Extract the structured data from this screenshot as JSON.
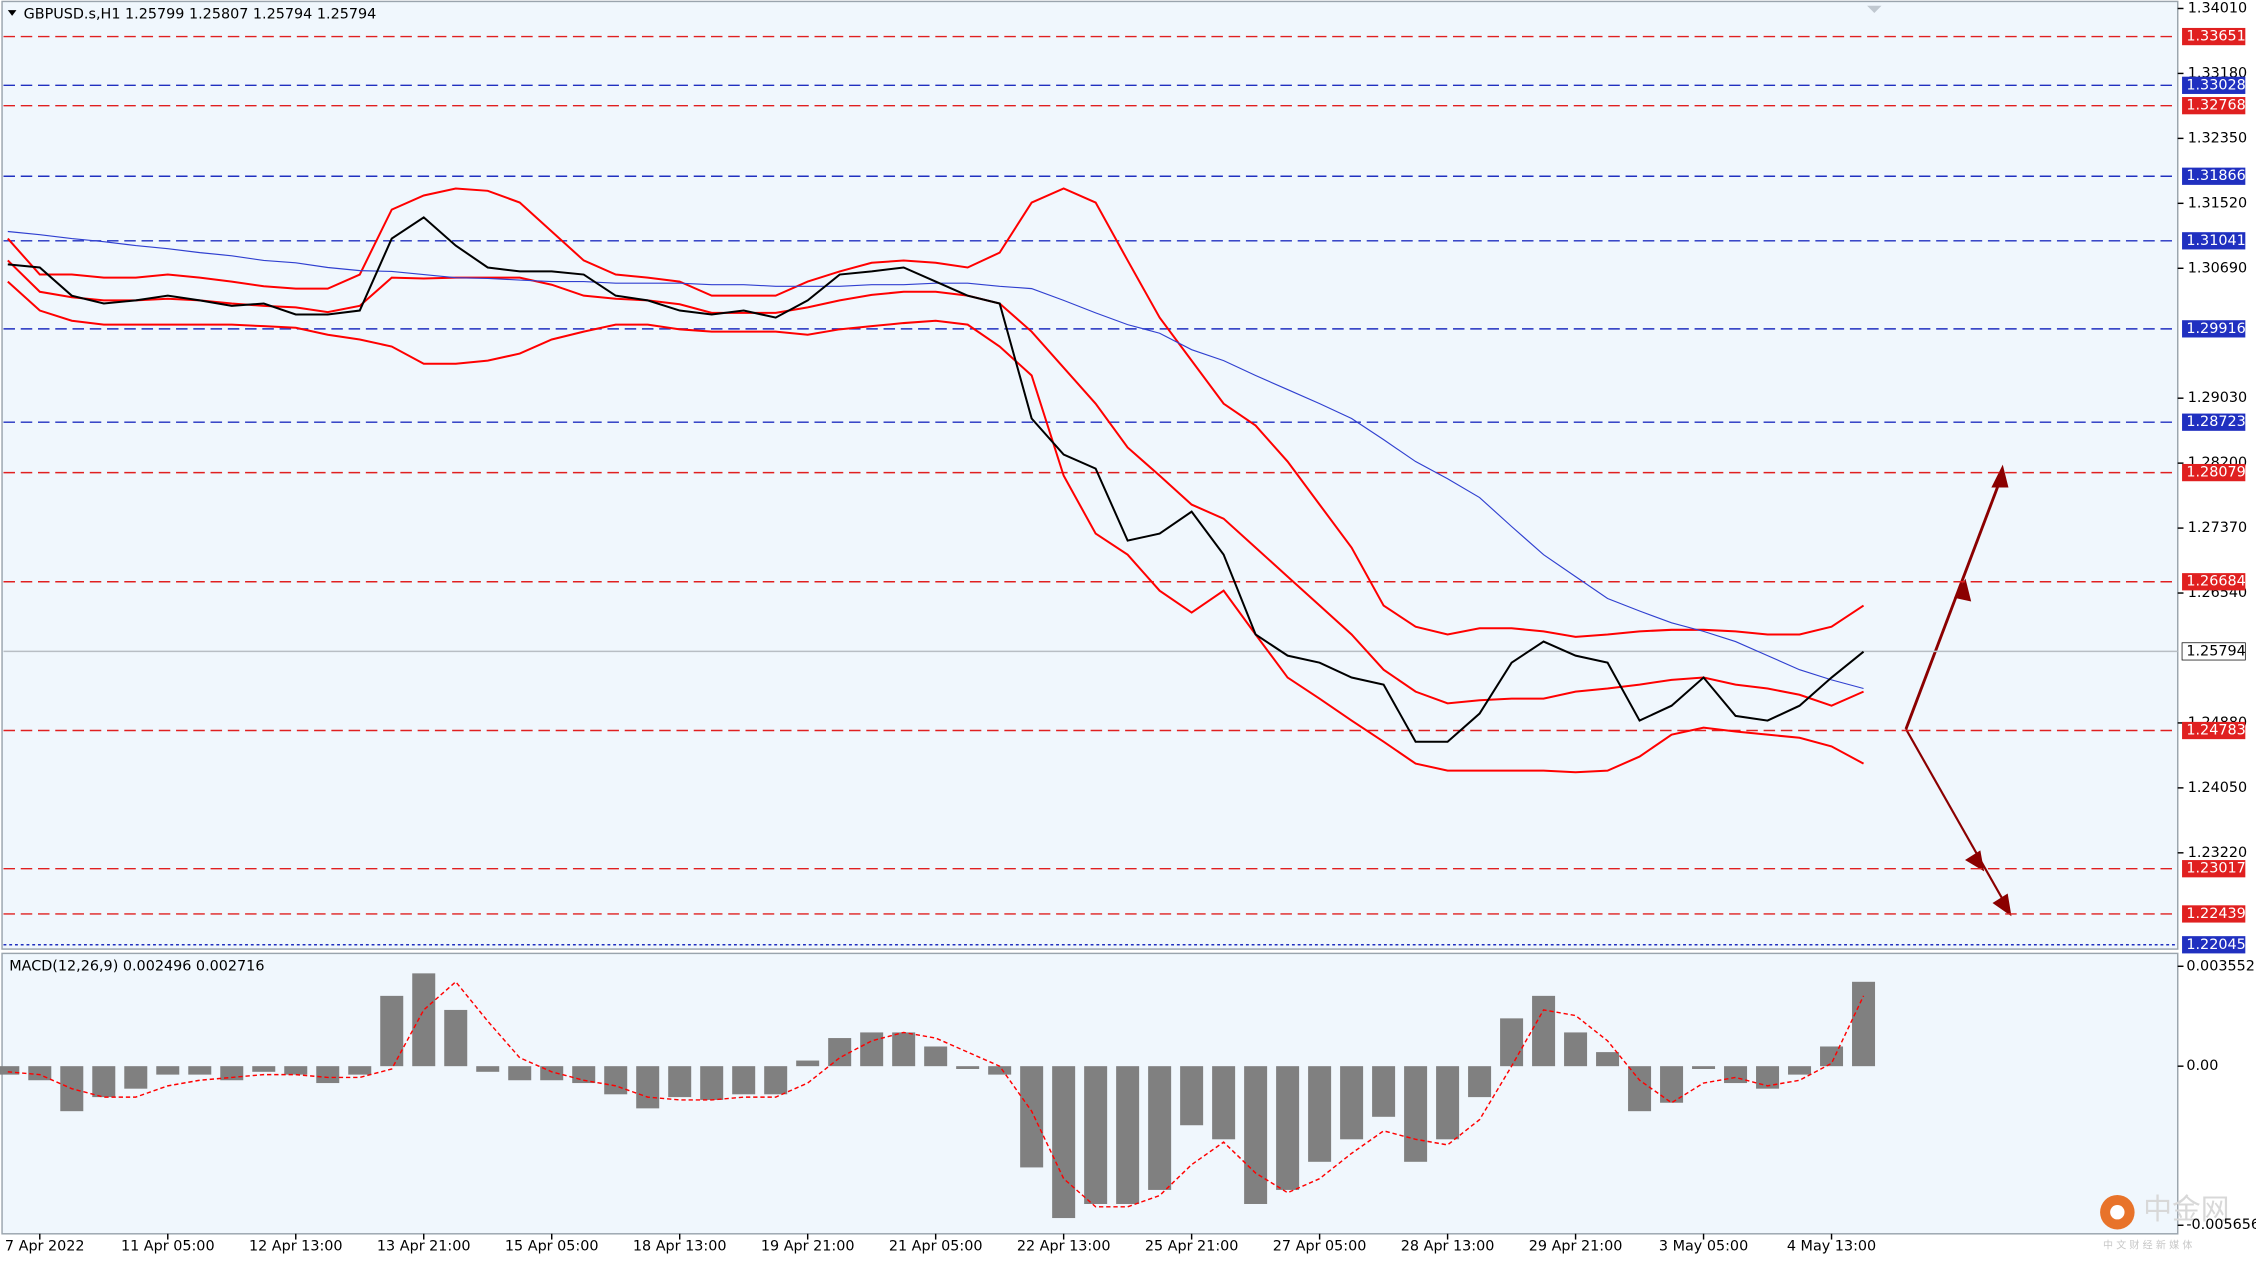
{
  "chart_data": [
    {
      "type": "line",
      "title": "GBPUSD.s,H1  1.25799 1.25807 1.25794 1.25794",
      "categories": [
        null,
        "7 Apr 2022",
        null,
        null,
        null,
        "11 Apr 05:00",
        null,
        null,
        null,
        "12 Apr 13:00",
        null,
        null,
        null,
        "13 Apr 21:00",
        null,
        null,
        null,
        "15 Apr 05:00",
        null,
        null,
        null,
        "18 Apr 13:00",
        null,
        null,
        null,
        "19 Apr 21:00",
        null,
        null,
        null,
        "21 Apr 05:00",
        null,
        null,
        null,
        "22 Apr 13:00",
        null,
        null,
        null,
        "25 Apr 21:00",
        null,
        null,
        null,
        "27 Apr 05:00",
        null,
        null,
        null,
        "28 Apr 13:00",
        null,
        null,
        null,
        "29 Apr 21:00",
        null,
        null,
        null,
        "3 May 05:00",
        null,
        null,
        null,
        "4 May 13:00",
        null
      ],
      "series": [
        {
          "color": "#ff0000",
          "values": [
            1.3107,
            1.3061,
            1.3061,
            1.3057,
            1.3057,
            1.3061,
            1.3057,
            1.3052,
            1.3046,
            1.3043,
            1.3043,
            1.3061,
            1.3144,
            1.3162,
            1.3171,
            1.3168,
            1.3153,
            1.3116,
            1.3079,
            1.3061,
            1.3057,
            1.3052,
            1.3034,
            1.3034,
            1.3034,
            1.3052,
            1.3065,
            1.3076,
            1.3079,
            1.3076,
            1.307,
            1.3089,
            1.3153,
            1.3171,
            1.3153,
            1.3079,
            1.3006,
            1.2951,
            1.2896,
            1.2868,
            1.2822,
            1.2767,
            1.2712,
            1.2638,
            1.2611,
            1.2601,
            1.2609,
            1.2609,
            1.2605,
            1.2598,
            1.2601,
            1.2605,
            1.2607,
            1.2607,
            1.2605,
            1.2601,
            1.2601,
            1.2611,
            1.2638
          ]
        },
        {
          "color": "#ff0000",
          "values": [
            1.3079,
            1.3039,
            1.3032,
            1.3028,
            1.3028,
            1.303,
            1.3028,
            1.3024,
            1.3021,
            1.3019,
            1.3013,
            1.3021,
            1.3057,
            1.3056,
            1.3057,
            1.3057,
            1.3057,
            1.3048,
            1.3034,
            1.303,
            1.3028,
            1.3023,
            1.3012,
            1.3012,
            1.3012,
            1.3019,
            1.3028,
            1.3035,
            1.3039,
            1.3039,
            1.3034,
            1.3024,
            1.2988,
            1.2942,
            1.2896,
            1.284,
            1.2804,
            1.2767,
            1.2749,
            1.2712,
            1.2675,
            1.2638,
            1.2601,
            1.2556,
            1.2528,
            1.2513,
            1.2517,
            1.2519,
            1.2519,
            1.2528,
            1.2532,
            1.2537,
            1.2543,
            1.2546,
            1.2537,
            1.2532,
            1.2524,
            1.251,
            1.2528
          ]
        },
        {
          "color": "#ff0000",
          "values": [
            1.3052,
            1.3015,
            1.3002,
            1.2997,
            1.2997,
            1.2997,
            1.2997,
            1.2997,
            1.2995,
            1.2993,
            1.2984,
            1.2978,
            1.2969,
            1.2947,
            1.2947,
            1.2951,
            1.296,
            1.2978,
            1.2988,
            1.2997,
            1.2997,
            1.2991,
            1.2988,
            1.2988,
            1.2988,
            1.2984,
            1.2991,
            1.2995,
            1.2999,
            1.3002,
            1.2997,
            1.2969,
            1.2932,
            1.2804,
            1.273,
            1.2703,
            1.2657,
            1.2629,
            1.2657,
            1.2601,
            1.2546,
            1.2519,
            1.2491,
            1.2464,
            1.2436,
            1.2427,
            1.2427,
            1.2427,
            1.2427,
            1.2425,
            1.2427,
            1.2445,
            1.2473,
            1.2482,
            1.2477,
            1.2473,
            1.2469,
            1.2458,
            1.2436
          ]
        },
        {
          "color": "#3040d0",
          "values": [
            1.3116,
            1.3112,
            1.3107,
            1.3103,
            1.3098,
            1.3094,
            1.3089,
            1.3085,
            1.3079,
            1.3076,
            1.307,
            1.3066,
            1.3065,
            1.3061,
            1.3057,
            1.3056,
            1.3054,
            1.3052,
            1.3052,
            1.305,
            1.305,
            1.305,
            1.3048,
            1.3048,
            1.3046,
            1.3046,
            1.3046,
            1.3048,
            1.3048,
            1.305,
            1.305,
            1.3046,
            1.3043,
            1.3028,
            1.3012,
            1.2997,
            1.2986,
            1.2965,
            1.2951,
            1.2932,
            1.2914,
            1.2896,
            1.2877,
            1.285,
            1.2822,
            1.28,
            1.2776,
            1.2739,
            1.2703,
            1.2675,
            1.2647,
            1.2631,
            1.2616,
            1.2605,
            1.2592,
            1.2574,
            1.2556,
            1.2543,
            1.2532
          ]
        },
        {
          "color": "#000000",
          "values": [
            1.3074,
            1.307,
            1.3034,
            1.3024,
            1.3028,
            1.3034,
            1.3028,
            1.3021,
            1.3024,
            1.301,
            1.301,
            1.3015,
            1.3107,
            1.3134,
            1.3098,
            1.307,
            1.3065,
            1.3065,
            1.3061,
            1.3034,
            1.3028,
            1.3015,
            1.301,
            1.3015,
            1.3006,
            1.3028,
            1.3061,
            1.3065,
            1.307,
            1.3052,
            1.3034,
            1.3024,
            1.2877,
            1.2831,
            1.2813,
            1.2721,
            1.273,
            1.2758,
            1.2703,
            1.2601,
            1.2574,
            1.2565,
            1.2546,
            1.2537,
            1.2464,
            1.2464,
            1.25,
            1.2565,
            1.2592,
            1.2574,
            1.2565,
            1.2491,
            1.251,
            1.2546,
            1.2497,
            1.2491,
            1.251,
            1.2546,
            1.2579
          ]
        }
      ],
      "ylim": [
        1.2199,
        1.341
      ],
      "yticks": [
        {
          "value": 1.3401,
          "label": "1.34010"
        },
        {
          "value": 1.3318,
          "label": "1.33180"
        },
        {
          "value": 1.3235,
          "label": "1.32350"
        },
        {
          "value": 1.3152,
          "label": "1.31520"
        },
        {
          "value": 1.3069,
          "label": "1.30690"
        },
        {
          "value": 1.2903,
          "label": "1.29030"
        },
        {
          "value": 1.282,
          "label": "1.28200"
        },
        {
          "value": 1.2737,
          "label": "1.27370"
        },
        {
          "value": 1.2654,
          "label": "1.26540"
        },
        {
          "value": 1.2488,
          "label": "1.24880"
        },
        {
          "value": 1.2405,
          "label": "1.24050"
        },
        {
          "value": 1.2322,
          "label": "1.23220"
        }
      ],
      "levels": [
        {
          "value": 1.33651,
          "color": "#e02020"
        },
        {
          "value": 1.33028,
          "color": "#2030c0"
        },
        {
          "value": 1.32768,
          "color": "#e02020"
        },
        {
          "value": 1.31866,
          "color": "#2030c0"
        },
        {
          "value": 1.31041,
          "color": "#2030c0"
        },
        {
          "value": 1.29916,
          "color": "#2030c0"
        },
        {
          "value": 1.28723,
          "color": "#2030c0"
        },
        {
          "value": 1.28079,
          "color": "#e02020"
        },
        {
          "value": 1.26684,
          "color": "#e02020"
        },
        {
          "value": 1.24783,
          "color": "#e02020"
        },
        {
          "value": 1.23017,
          "color": "#e02020"
        },
        {
          "value": 1.22439,
          "color": "#e02020"
        }
      ],
      "last_price": 1.25794,
      "bottom_line": 1.22045,
      "watermark": "中金网",
      "watermark_subtitle": "中 文 财 经 新 媒 体"
    },
    {
      "type": "bar",
      "title": "MACD(12,26,9) 0.002496 0.002716",
      "series": [
        {
          "color": "#808080",
          "values": [
            -0.0003,
            -0.0005,
            -0.0016,
            -0.0011,
            -0.0008,
            -0.0003,
            -0.0003,
            -0.0005,
            -0.0002,
            -0.0003,
            -0.0006,
            -0.0003,
            0.0025,
            0.0033,
            0.002,
            -0.0002,
            -0.0005,
            -0.0005,
            -0.0006,
            -0.001,
            -0.0015,
            -0.0011,
            -0.0012,
            -0.001,
            -0.001,
            0.0002,
            0.001,
            0.0012,
            0.0012,
            0.0007,
            -0.0001,
            -0.0003,
            -0.0036,
            -0.0054,
            -0.0049,
            -0.0049,
            -0.0044,
            -0.0021,
            -0.0026,
            -0.0049,
            -0.0044,
            -0.0034,
            -0.0026,
            -0.0018,
            -0.0034,
            -0.0026,
            -0.0011,
            0.0017,
            0.0025,
            0.0012,
            0.0005,
            -0.0016,
            -0.0013,
            -0.0001,
            -0.0006,
            -0.0008,
            -0.0003,
            0.0007,
            0.003
          ]
        },
        {
          "color": "#ff0000",
          "values": [
            -0.0002,
            -0.0003,
            -0.0008,
            -0.0011,
            -0.0011,
            -0.0007,
            -0.0005,
            -0.0004,
            -0.0003,
            -0.0003,
            -0.0004,
            -0.0004,
            -0.0001,
            0.002,
            0.003,
            0.0016,
            0.0003,
            -0.0002,
            -0.0005,
            -0.0007,
            -0.0011,
            -0.0012,
            -0.0012,
            -0.0011,
            -0.0011,
            -0.0006,
            0.0003,
            0.0009,
            0.0012,
            0.001,
            0.0005,
            0.0,
            -0.0016,
            -0.004,
            -0.005,
            -0.005,
            -0.0046,
            -0.0035,
            -0.0027,
            -0.0038,
            -0.0045,
            -0.004,
            -0.0031,
            -0.0023,
            -0.0026,
            -0.0028,
            -0.0019,
            0.0,
            0.002,
            0.0018,
            0.0009,
            -0.0005,
            -0.0013,
            -0.0006,
            -0.0004,
            -0.0007,
            -0.0005,
            0.0001,
            0.0025
          ]
        }
      ],
      "ylim": [
        -0.00596,
        0.00401
      ],
      "yticks": [
        0.003552,
        {
          "value": 0,
          "label": "0.00"
        },
        -0.005656
      ]
    }
  ]
}
